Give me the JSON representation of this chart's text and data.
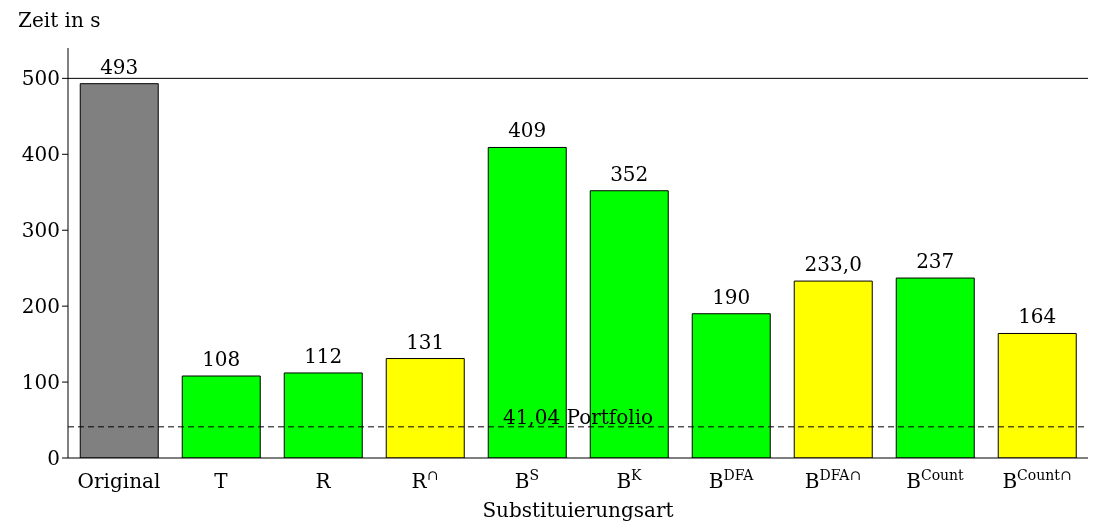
{
  "chart_data": {
    "type": "bar",
    "ylabel": "Zeit in s",
    "xlabel": "Substituierungsart",
    "categories": [
      "Original",
      "T",
      "R",
      "R$^{∩}$",
      "B$^{S}$",
      "B$^{K}$",
      "B$^{DFA}$",
      "B$^{DFA∩}$",
      "B$^{Count}$",
      "B$^{Count∩}$"
    ],
    "values": [
      493,
      108,
      112,
      131,
      409,
      352,
      190,
      233,
      237,
      164
    ],
    "colors": [
      "#808080",
      "#00ff00",
      "#00ff00",
      "#ffff00",
      "#00ff00",
      "#00ff00",
      "#00ff00",
      "#ffff00",
      "#00ff00",
      "#ffff00"
    ],
    "value_labels": [
      "493",
      "108",
      "112",
      "131",
      "409",
      "352",
      "190",
      "233,0",
      "237",
      "164"
    ],
    "ylim": [
      0,
      540
    ],
    "yticks": [
      0,
      100,
      200,
      300,
      400,
      500
    ],
    "ref_lines": [
      {
        "axis": "y",
        "value": 41.04,
        "label": "41,04 Portfolio",
        "line_style": "dashed"
      },
      {
        "axis": "y",
        "value": 500,
        "line_style": "solid"
      }
    ]
  }
}
